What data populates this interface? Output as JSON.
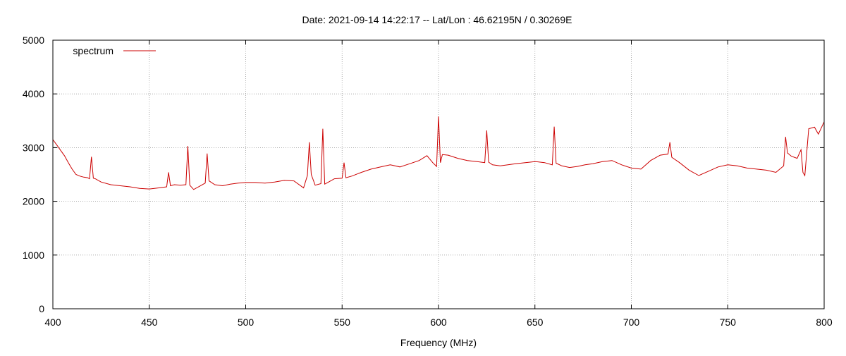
{
  "chart_data": {
    "type": "line",
    "title": "Date: 2021-09-14 14:22:17  --  Lat/Lon : 46.62195N / 0.30269E",
    "xlabel": "Frequency (MHz)",
    "ylabel": "",
    "xlim": [
      400,
      800
    ],
    "ylim": [
      0,
      5000
    ],
    "xticks": [
      400,
      450,
      500,
      550,
      600,
      650,
      700,
      750,
      800
    ],
    "yticks": [
      0,
      1000,
      2000,
      3000,
      4000,
      5000
    ],
    "grid": true,
    "legend_position": "top-left",
    "series": [
      {
        "name": "spectrum",
        "color": "#cc0000",
        "x": [
          400,
          402,
          404,
          406,
          408,
          410,
          412,
          414,
          416,
          418,
          419,
          420,
          421,
          422,
          425,
          430,
          435,
          440,
          445,
          450,
          455,
          459,
          460,
          461,
          463,
          466,
          469,
          470,
          471,
          473,
          476,
          479,
          480,
          481,
          484,
          488,
          492,
          496,
          500,
          505,
          510,
          515,
          520,
          525,
          530,
          532,
          533,
          534,
          536,
          539,
          540,
          541,
          543,
          546,
          550,
          551,
          552,
          555,
          560,
          565,
          570,
          575,
          580,
          585,
          590,
          594,
          597,
          599,
          600,
          601,
          602,
          605,
          610,
          615,
          620,
          624,
          625,
          626,
          628,
          632,
          636,
          640,
          645,
          650,
          655,
          659,
          660,
          661,
          664,
          668,
          672,
          676,
          680,
          685,
          690,
          695,
          700,
          705,
          710,
          715,
          719,
          720,
          721,
          725,
          730,
          735,
          740,
          745,
          750,
          755,
          760,
          765,
          770,
          775,
          779,
          780,
          781,
          783,
          786,
          788,
          789,
          790,
          792,
          795,
          797,
          800
        ],
        "y": [
          3150,
          3050,
          2950,
          2850,
          2720,
          2600,
          2500,
          2470,
          2450,
          2440,
          2420,
          2830,
          2430,
          2420,
          2360,
          2310,
          2290,
          2270,
          2240,
          2230,
          2250,
          2270,
          2540,
          2290,
          2310,
          2300,
          2310,
          3030,
          2300,
          2220,
          2280,
          2340,
          2890,
          2380,
          2310,
          2290,
          2320,
          2340,
          2350,
          2350,
          2340,
          2360,
          2390,
          2380,
          2250,
          2480,
          3100,
          2500,
          2300,
          2330,
          3350,
          2320,
          2360,
          2420,
          2430,
          2720,
          2440,
          2470,
          2540,
          2600,
          2640,
          2680,
          2640,
          2700,
          2760,
          2850,
          2720,
          2650,
          3580,
          2720,
          2870,
          2860,
          2800,
          2760,
          2740,
          2720,
          3320,
          2730,
          2680,
          2660,
          2680,
          2700,
          2720,
          2740,
          2720,
          2680,
          3390,
          2710,
          2660,
          2630,
          2650,
          2680,
          2700,
          2740,
          2760,
          2680,
          2620,
          2600,
          2760,
          2860,
          2880,
          3100,
          2820,
          2720,
          2580,
          2480,
          2560,
          2640,
          2680,
          2660,
          2620,
          2600,
          2580,
          2540,
          2660,
          3200,
          2900,
          2840,
          2800,
          2960,
          2540,
          2480,
          3350,
          3380,
          3250,
          3480
        ]
      }
    ]
  }
}
